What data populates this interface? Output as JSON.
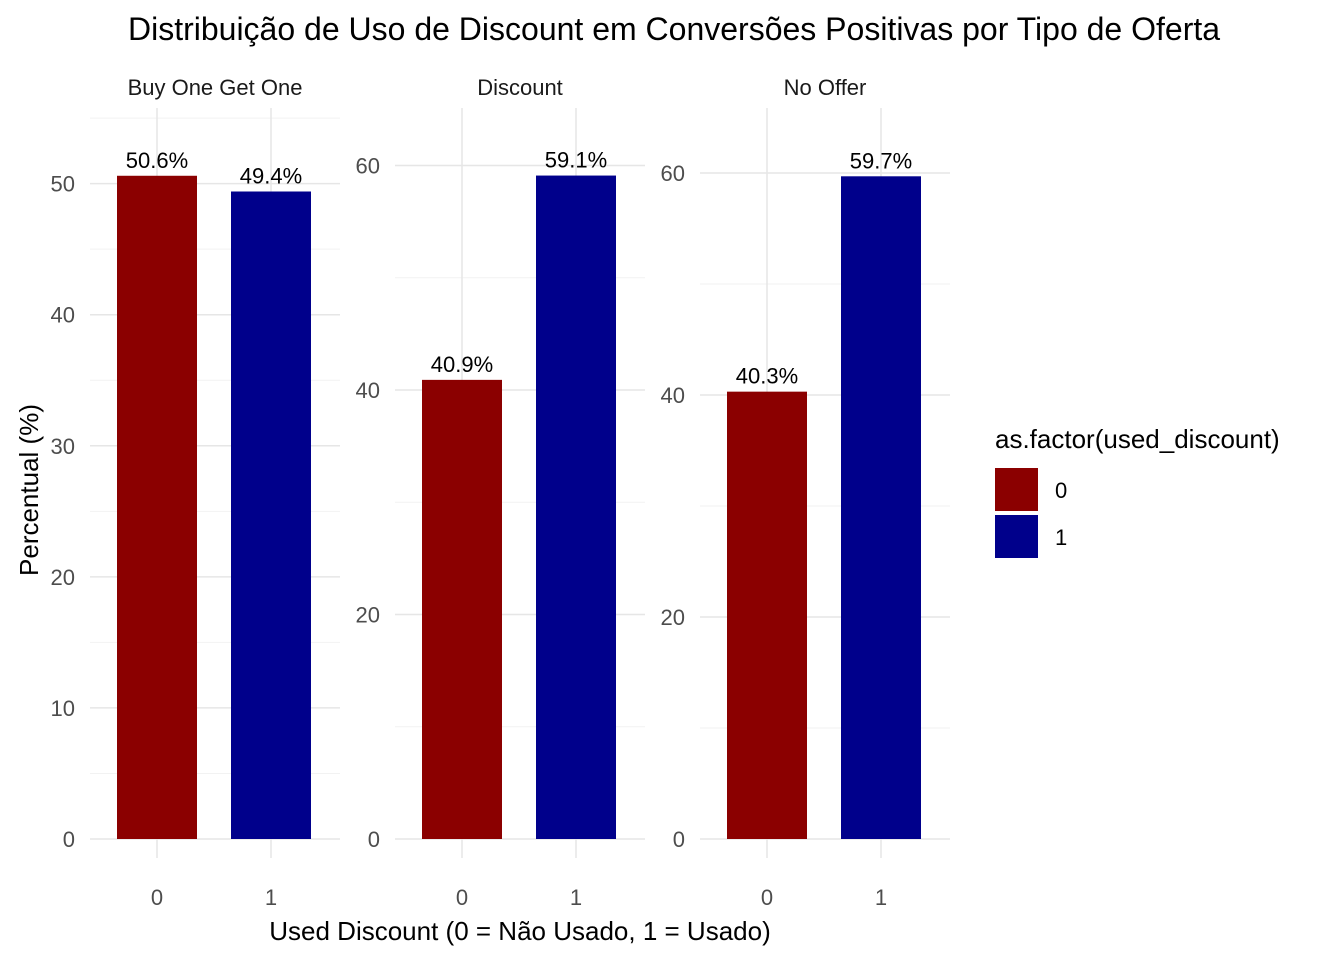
{
  "chart_data": {
    "type": "bar",
    "title": "Distribuição de Uso de Discount em Conversões Positivas por Tipo de Oferta",
    "xlabel": "Used Discount (0 = Não Usado, 1 = Usado)",
    "ylabel": "Percentual (%)",
    "legend": {
      "title": "as.factor(used_discount)",
      "placement": "right",
      "entries": [
        {
          "label": "0",
          "color": "#8B0000"
        },
        {
          "label": "1",
          "color": "#00008B"
        }
      ]
    },
    "grid": true,
    "panels": [
      {
        "name": "Buy One Get One",
        "categories": [
          "0",
          "1"
        ],
        "values": [
          50.6,
          49.4
        ],
        "labels": [
          "50.6%",
          "49.4%"
        ],
        "ylim": [
          0,
          53.1
        ],
        "yticks": [
          0,
          10,
          20,
          30,
          40,
          50
        ],
        "ytick_labels": [
          "0",
          "10",
          "20",
          "30",
          "40",
          "50"
        ]
      },
      {
        "name": "Discount",
        "categories": [
          "0",
          "1"
        ],
        "values": [
          40.9,
          59.1
        ],
        "labels": [
          "40.9%",
          "59.1%"
        ],
        "ylim": [
          0,
          62.0
        ],
        "yticks": [
          0,
          20,
          40,
          60
        ],
        "ytick_labels": [
          "0",
          "20",
          "40",
          "60"
        ]
      },
      {
        "name": "No Offer",
        "categories": [
          "0",
          "1"
        ],
        "values": [
          40.3,
          59.7
        ],
        "labels": [
          "40.3%",
          "59.7%"
        ],
        "ylim": [
          0,
          62.7
        ],
        "yticks": [
          0,
          20,
          40,
          60
        ],
        "ytick_labels": [
          "0",
          "20",
          "40",
          "60"
        ]
      }
    ]
  }
}
